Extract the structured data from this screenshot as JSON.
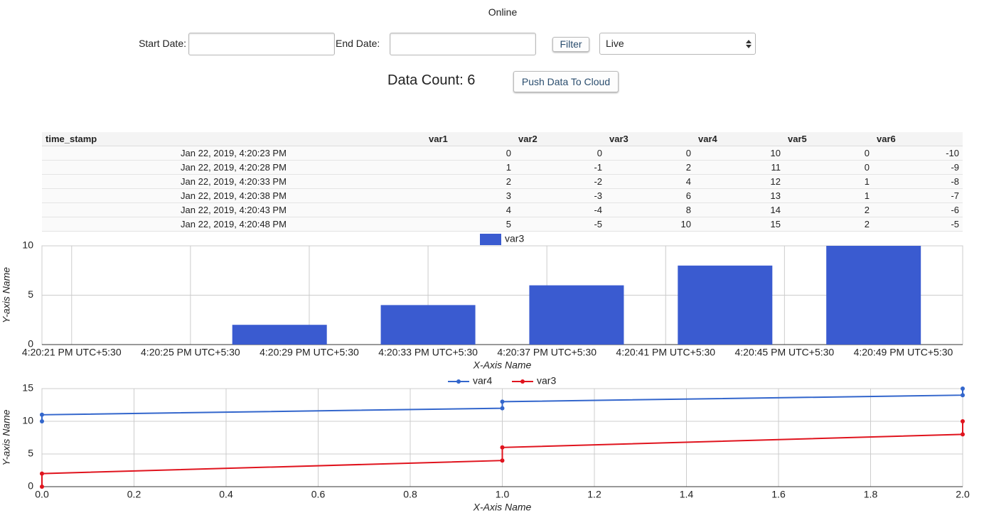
{
  "header": {
    "status": "Online"
  },
  "filter": {
    "start_label": "Start Date:",
    "end_label": "End Date:",
    "filter_button": "Filter",
    "mode": "Live"
  },
  "summary": {
    "count_label": "Data Count:",
    "count": 6,
    "push_button": "Push Data To Cloud"
  },
  "table": {
    "columns": [
      "time_stamp",
      "var1",
      "var2",
      "var3",
      "var4",
      "var5",
      "var6"
    ],
    "rows": [
      [
        "Jan 22, 2019, 4:20:23 PM",
        0,
        0,
        0,
        10,
        0,
        -10
      ],
      [
        "Jan 22, 2019, 4:20:28 PM",
        1,
        -1,
        2,
        11,
        0,
        -9
      ],
      [
        "Jan 22, 2019, 4:20:33 PM",
        2,
        -2,
        4,
        12,
        1,
        -8
      ],
      [
        "Jan 22, 2019, 4:20:38 PM",
        3,
        -3,
        6,
        13,
        1,
        -7
      ],
      [
        "Jan 22, 2019, 4:20:43 PM",
        4,
        -4,
        8,
        14,
        2,
        -6
      ],
      [
        "Jan 22, 2019, 4:20:48 PM",
        5,
        -5,
        10,
        15,
        2,
        -5
      ]
    ]
  },
  "chart_data": [
    {
      "type": "bar",
      "x_label": "X-Axis Name",
      "y_label": "Y-axis Name",
      "x": [
        "4:20:23 PM UTC+5:30",
        "4:20:28 PM UTC+5:30",
        "4:20:33 PM UTC+5:30",
        "4:20:38 PM UTC+5:30",
        "4:20:43 PM UTC+5:30",
        "4:20:48 PM UTC+5:30"
      ],
      "series": [
        {
          "name": "var3",
          "color": "#3a5bd0",
          "values": [
            0,
            2,
            4,
            6,
            8,
            10
          ]
        }
      ],
      "xlim": [
        "4:20:20 PM UTC+5:30",
        "4:20:51 PM UTC+5:30"
      ],
      "xticks": [
        "4:20:21 PM UTC+5:30",
        "4:20:25 PM UTC+5:30",
        "4:20:29 PM UTC+5:30",
        "4:20:33 PM UTC+5:30",
        "4:20:37 PM UTC+5:30",
        "4:20:41 PM UTC+5:30",
        "4:20:45 PM UTC+5:30",
        "4:20:49 PM UTC+5:30"
      ],
      "ylim": [
        0,
        10
      ],
      "yticks": [
        0,
        5,
        10
      ],
      "grid": true,
      "legend": "top"
    },
    {
      "type": "line",
      "x_label": "X-Axis Name",
      "y_label": "Y-axis Name",
      "x": [
        0,
        0,
        1,
        1,
        2,
        2
      ],
      "series": [
        {
          "name": "var4",
          "color": "#3366cc",
          "values": [
            10,
            11,
            12,
            13,
            14,
            15
          ]
        },
        {
          "name": "var3",
          "color": "#e0141e",
          "values": [
            0,
            2,
            4,
            6,
            8,
            10
          ]
        }
      ],
      "xlim": [
        0,
        2
      ],
      "xticks": [
        {
          "value": 0,
          "label": "0.0"
        },
        {
          "value": 0.2,
          "label": "0.2"
        },
        {
          "value": 0.4,
          "label": "0.4"
        },
        {
          "value": 0.6,
          "label": "0.6"
        },
        {
          "value": 0.8,
          "label": "0.8"
        },
        {
          "value": 1,
          "label": "1.0"
        },
        {
          "value": 1.2,
          "label": "1.2"
        },
        {
          "value": 1.4,
          "label": "1.4"
        },
        {
          "value": 1.6,
          "label": "1.6"
        },
        {
          "value": 1.8,
          "label": "1.8"
        },
        {
          "value": 2,
          "label": "2.0"
        }
      ],
      "ylim": [
        0,
        15
      ],
      "yticks": [
        0,
        5,
        10,
        15
      ],
      "grid": true,
      "legend": "top"
    }
  ]
}
